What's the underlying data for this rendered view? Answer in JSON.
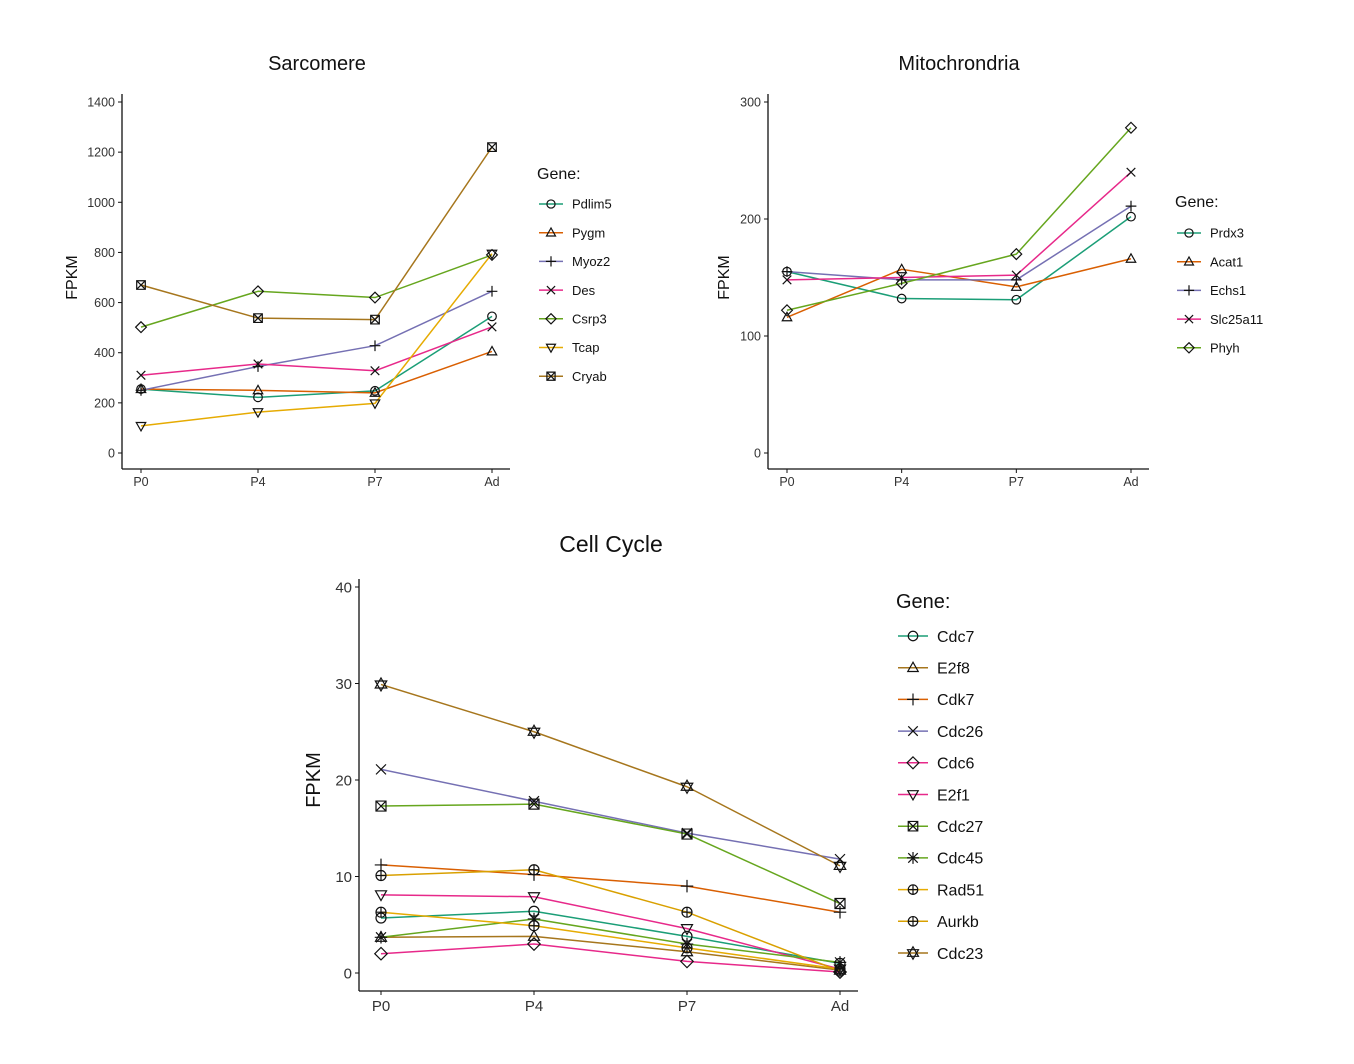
{
  "chart_data": [
    {
      "type": "line",
      "title": "Sarcomere",
      "xlabel": "",
      "ylabel": "FPKM",
      "x": [
        "P0",
        "P4",
        "P7",
        "Ad"
      ],
      "yticks": [
        0,
        200,
        400,
        600,
        800,
        1000,
        1200,
        1400
      ],
      "ylim": [
        0,
        1400
      ],
      "grid": false,
      "legend": {
        "title": "Gene:",
        "position": "right"
      },
      "series": [
        {
          "name": "Pdlim5",
          "color": "#1b9e77",
          "marker": "circle",
          "values": [
            255,
            222,
            248,
            545
          ]
        },
        {
          "name": "Pygm",
          "color": "#d95f02",
          "marker": "triangle-up",
          "values": [
            255,
            250,
            240,
            405
          ]
        },
        {
          "name": "Myoz2",
          "color": "#7570b3",
          "marker": "plus",
          "values": [
            250,
            345,
            428,
            645
          ]
        },
        {
          "name": "Des",
          "color": "#e7298a",
          "marker": "x",
          "values": [
            310,
            355,
            328,
            503
          ]
        },
        {
          "name": "Csrp3",
          "color": "#66a61e",
          "marker": "diamond",
          "values": [
            502,
            645,
            620,
            790
          ]
        },
        {
          "name": "Tcap",
          "color": "#e6ab02",
          "marker": "triangle-down",
          "values": [
            108,
            163,
            198,
            795
          ]
        },
        {
          "name": "Cryab",
          "color": "#a6761d",
          "marker": "square-x",
          "values": [
            670,
            538,
            532,
            1220
          ]
        }
      ]
    },
    {
      "type": "line",
      "title": "Mitochrondria",
      "xlabel": "",
      "ylabel": "FPKM",
      "x": [
        "P0",
        "P4",
        "P7",
        "Ad"
      ],
      "yticks": [
        0,
        100,
        200,
        300
      ],
      "ylim": [
        0,
        300
      ],
      "grid": false,
      "legend": {
        "title": "Gene:",
        "position": "right"
      },
      "series": [
        {
          "name": "Prdx3",
          "color": "#1b9e77",
          "marker": "circle",
          "values": [
            155,
            132,
            131,
            202
          ]
        },
        {
          "name": "Acat1",
          "color": "#d95f02",
          "marker": "triangle-up",
          "values": [
            116,
            157,
            142,
            166
          ]
        },
        {
          "name": "Echs1",
          "color": "#7570b3",
          "marker": "plus",
          "values": [
            155,
            148,
            148,
            211
          ]
        },
        {
          "name": "Slc25a11",
          "color": "#e7298a",
          "marker": "x",
          "values": [
            148,
            150,
            152,
            240
          ]
        },
        {
          "name": "Phyh",
          "color": "#66a61e",
          "marker": "diamond",
          "values": [
            122,
            145,
            170,
            278
          ]
        }
      ]
    },
    {
      "type": "line",
      "title": "Cell Cycle",
      "xlabel": "",
      "ylabel": "FPKM",
      "x": [
        "P0",
        "P4",
        "P7",
        "Ad"
      ],
      "yticks": [
        0,
        10,
        20,
        30,
        40
      ],
      "ylim": [
        0,
        40
      ],
      "grid": false,
      "legend": {
        "title": "Gene:",
        "position": "right"
      },
      "series": [
        {
          "name": "Cdc7",
          "color": "#1b9e77",
          "marker": "circle",
          "values": [
            5.7,
            6.4,
            3.8,
            1.0
          ]
        },
        {
          "name": "E2f8",
          "color": "#a6761d",
          "marker": "triangle-up",
          "values": [
            3.7,
            3.8,
            2.2,
            0.3
          ]
        },
        {
          "name": "Cdk7",
          "color": "#d95f02",
          "marker": "plus",
          "values": [
            11.2,
            10.2,
            9.0,
            6.3
          ]
        },
        {
          "name": "Cdc26",
          "color": "#7570b3",
          "marker": "x",
          "values": [
            21.1,
            17.8,
            14.5,
            11.8
          ]
        },
        {
          "name": "Cdc6",
          "color": "#e7298a",
          "marker": "diamond",
          "values": [
            2.0,
            3.0,
            1.2,
            0.1
          ]
        },
        {
          "name": "E2f1",
          "color": "#e7298a",
          "marker": "triangle-down",
          "values": [
            8.1,
            7.9,
            4.6,
            0.4
          ]
        },
        {
          "name": "Cdc27",
          "color": "#66a61e",
          "marker": "square-x",
          "values": [
            17.3,
            17.5,
            14.4,
            7.2
          ]
        },
        {
          "name": "Cdc45",
          "color": "#66a61e",
          "marker": "asterisk",
          "values": [
            3.7,
            5.6,
            3.0,
            1.1
          ]
        },
        {
          "name": "Rad51",
          "color": "#e6ab02",
          "marker": "circle-plus",
          "values": [
            6.3,
            4.9,
            2.6,
            0.4
          ]
        },
        {
          "name": "Aurkb",
          "color": "#d9a000",
          "marker": "circle-plus",
          "values": [
            10.1,
            10.7,
            6.3,
            0.2
          ]
        },
        {
          "name": "Cdc23",
          "color": "#a6761d",
          "marker": "star",
          "values": [
            29.9,
            25.0,
            19.3,
            11.1
          ]
        }
      ]
    }
  ]
}
